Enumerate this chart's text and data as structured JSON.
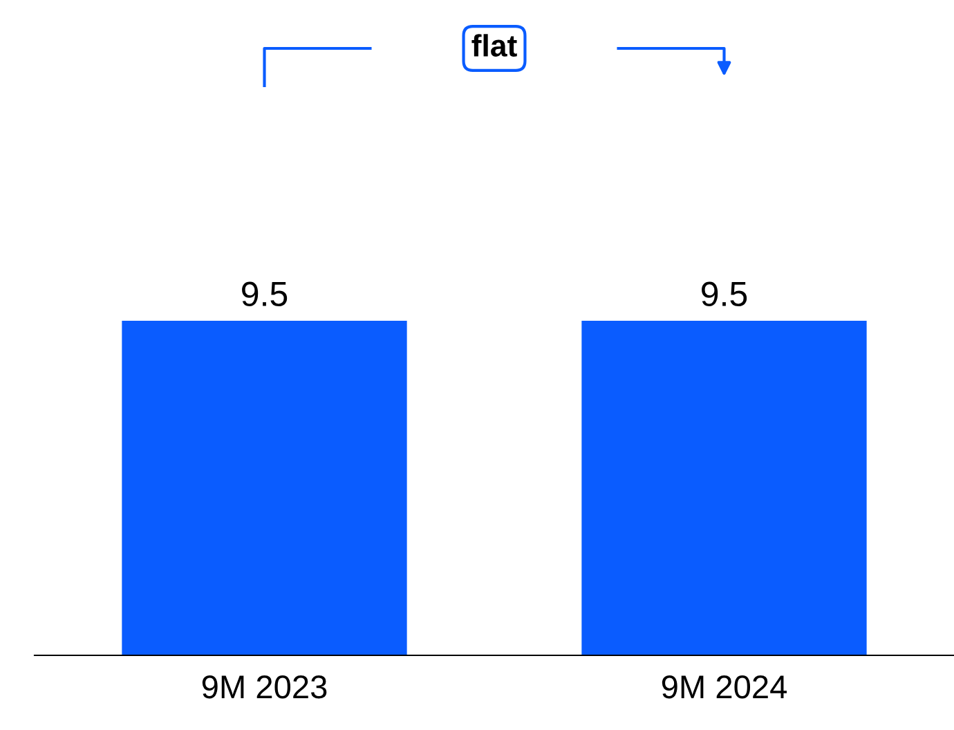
{
  "chart_data": {
    "type": "bar",
    "categories": [
      "9M 2023",
      "9M 2024"
    ],
    "values": [
      9.5,
      9.5
    ],
    "color": "#0a5cff",
    "data_labels": true,
    "annotations": [
      "flat"
    ]
  }
}
